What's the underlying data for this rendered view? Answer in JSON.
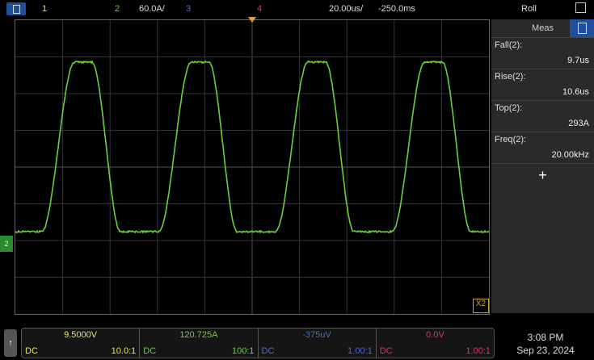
{
  "header": {
    "ch1": "1",
    "ch2": "2",
    "ch2_scale": "60.0A/",
    "ch3": "3",
    "ch4": "4",
    "timebase": "20.00us/",
    "delay": "-250.0ms",
    "mode": "Roll"
  },
  "colors": {
    "ch1": "#e8e84a",
    "ch2": "#6ad040",
    "ch3": "#4a6ed0",
    "ch4": "#e03070"
  },
  "meas": {
    "title": "Meas",
    "items": [
      {
        "label": "Fall(2):",
        "value": "9.7us"
      },
      {
        "label": "Rise(2):",
        "value": "10.6us"
      },
      {
        "label": "Top(2):",
        "value": "293A"
      },
      {
        "label": "Freq(2):",
        "value": "20.00kHz"
      }
    ],
    "add": "+"
  },
  "channels": [
    {
      "value": "9.5000V",
      "coupling": "DC",
      "probe": "10.0:1"
    },
    {
      "value": "120.725A",
      "coupling": "DC",
      "probe": "100:1"
    },
    {
      "value": "-375uV",
      "coupling": "DC",
      "probe": "1.00:1"
    },
    {
      "value": "0.0V",
      "coupling": "DC",
      "probe": "1.00:1"
    }
  ],
  "ground_marker": "2",
  "zoom_marker": "X2",
  "clock": {
    "time": "3:08 PM",
    "date": "Sep 23, 2024"
  }
}
